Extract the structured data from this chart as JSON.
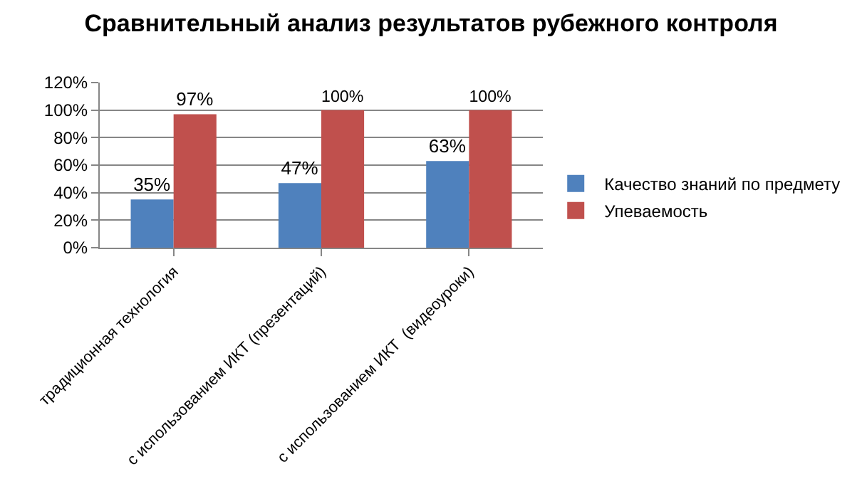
{
  "chart_data": {
    "type": "bar",
    "title": "Сравнительный анализ результатов рубежного контроля",
    "categories": [
      "традиционная технология",
      "с использованием ИКТ (презентаций)",
      "с использованием ИКТ  (видеоуроки)"
    ],
    "series": [
      {
        "name": "Качество знаний по предмету",
        "color": "#4f81bd",
        "values": [
          35,
          47,
          63
        ],
        "value_labels": [
          "35%",
          "47%",
          "63%"
        ]
      },
      {
        "name": "Упеваемость",
        "color": "#c0504d",
        "values": [
          97,
          100,
          100
        ],
        "value_labels": [
          "97%",
          "100%",
          "100%"
        ]
      }
    ],
    "ylim": [
      0,
      120
    ],
    "yticks": [
      {
        "value": 0,
        "label": "0%"
      },
      {
        "value": 20,
        "label": "20%"
      },
      {
        "value": 40,
        "label": "40%"
      },
      {
        "value": 60,
        "label": "60%"
      },
      {
        "value": 80,
        "label": "80%"
      },
      {
        "value": 100,
        "label": "100%"
      },
      {
        "value": 120,
        "label": "120%"
      }
    ],
    "grid": "y",
    "legend": "right"
  }
}
